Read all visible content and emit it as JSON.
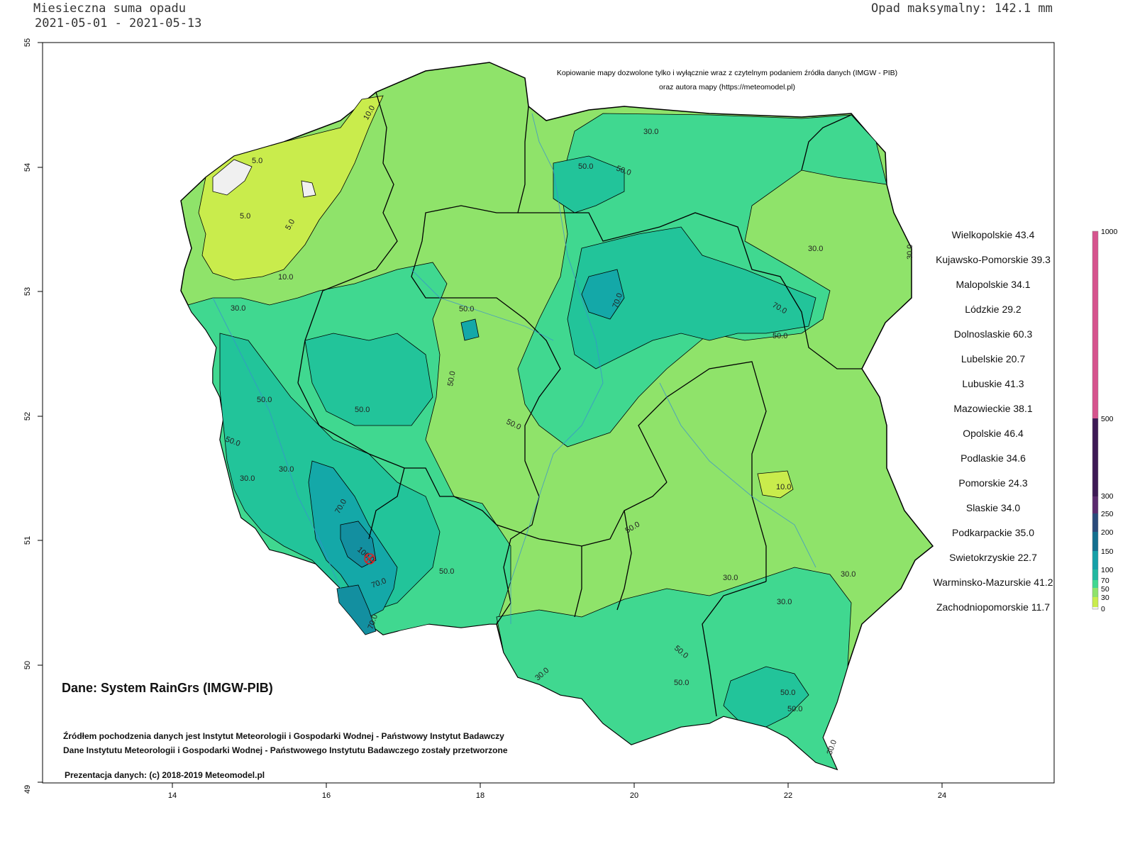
{
  "header": {
    "title_line1": "Miesieczna suma opadu",
    "title_line2": "2021-05-01 - 2021-05-13",
    "max_precip": "Opad maksymalny: 142.1 mm"
  },
  "copyright": {
    "line1": "Kopiowanie mapy dozwolone tylko i wyłącznie wraz z czytelnym podaniem źródła danych (IMGW - PIB)",
    "line2": "oraz autora mapy (https://meteomodel.pl)"
  },
  "axes": {
    "y_ticks": [
      "55",
      "54",
      "53",
      "52",
      "51",
      "50",
      "49"
    ],
    "x_ticks": [
      "14",
      "16",
      "18",
      "20",
      "22",
      "24"
    ]
  },
  "regions": [
    {
      "name": "Wielkopolskie",
      "value": "43.4"
    },
    {
      "name": "Kujawsko-Pomorskie",
      "value": "39.3"
    },
    {
      "name": "Malopolskie",
      "value": "34.1"
    },
    {
      "name": "Lódzkie",
      "value": "29.2"
    },
    {
      "name": "Dolnoslaskie",
      "value": "60.3"
    },
    {
      "name": "Lubelskie",
      "value": "20.7"
    },
    {
      "name": "Lubuskie",
      "value": "41.3"
    },
    {
      "name": "Mazowieckie",
      "value": "38.1"
    },
    {
      "name": "Opolskie",
      "value": "46.4"
    },
    {
      "name": "Podlaskie",
      "value": "34.6"
    },
    {
      "name": "Pomorskie",
      "value": "24.3"
    },
    {
      "name": "Slaskie",
      "value": "34.0"
    },
    {
      "name": "Podkarpackie",
      "value": "35.0"
    },
    {
      "name": "Swietokrzyskie",
      "value": "22.7"
    },
    {
      "name": "Warminsko-Mazurskie",
      "value": "41.2"
    },
    {
      "name": "Zachodniopomorskie",
      "value": "11.7"
    }
  ],
  "legend": {
    "labels": [
      "1000",
      "500",
      "300",
      "250",
      "200",
      "150",
      "100",
      "70",
      "50",
      "30",
      "0"
    ],
    "colors": [
      "#d6548e",
      "#ba3f7c",
      "#5a1a5e",
      "#3d1a55",
      "#2a4a7a",
      "#136f8f",
      "#15a0a8",
      "#22b8a0",
      "#40d890",
      "#8fe36a",
      "#c9ec4c"
    ]
  },
  "contour_labels": [
    "5.0",
    "5.0",
    "5.0",
    "10.0",
    "10.0",
    "10.0",
    "30.0",
    "30.0",
    "30.0",
    "30.0",
    "30.0",
    "30.0",
    "30.0",
    "30.0",
    "30.0",
    "30.0",
    "30.0",
    "50.0",
    "50.0",
    "50.0",
    "50.0",
    "50.0",
    "50.0",
    "50.0",
    "50.0",
    "50.0",
    "50.0",
    "50.0",
    "50.0",
    "50.0",
    "50.0",
    "70.0",
    "70.0",
    "70.0",
    "70.0",
    "70.0",
    "100.0"
  ],
  "footer": {
    "source": "Dane: System RainGrs (IMGW-PIB)",
    "credit1": "Źródłem pochodzenia danych jest Instytut Meteorologii i Gospodarki Wodnej - Państwowy Instytut Badawczy",
    "credit2": "Dane Instytutu Meteorologii i Gospodarki Wodnej - Państwowego Instytutu Badawczego zostały przetworzone",
    "credit3": "Prezentacja danych: (c) 2018-2019 Meteomodel.pl"
  },
  "map_colors": {
    "light_green": "#8fe36a",
    "yellow_green": "#c9ec4c",
    "teal_green": "#40d890",
    "teal": "#22c49a",
    "dark_teal": "#14a8a8",
    "blue_teal": "#138fa0",
    "pale": "#f0f0f0"
  }
}
